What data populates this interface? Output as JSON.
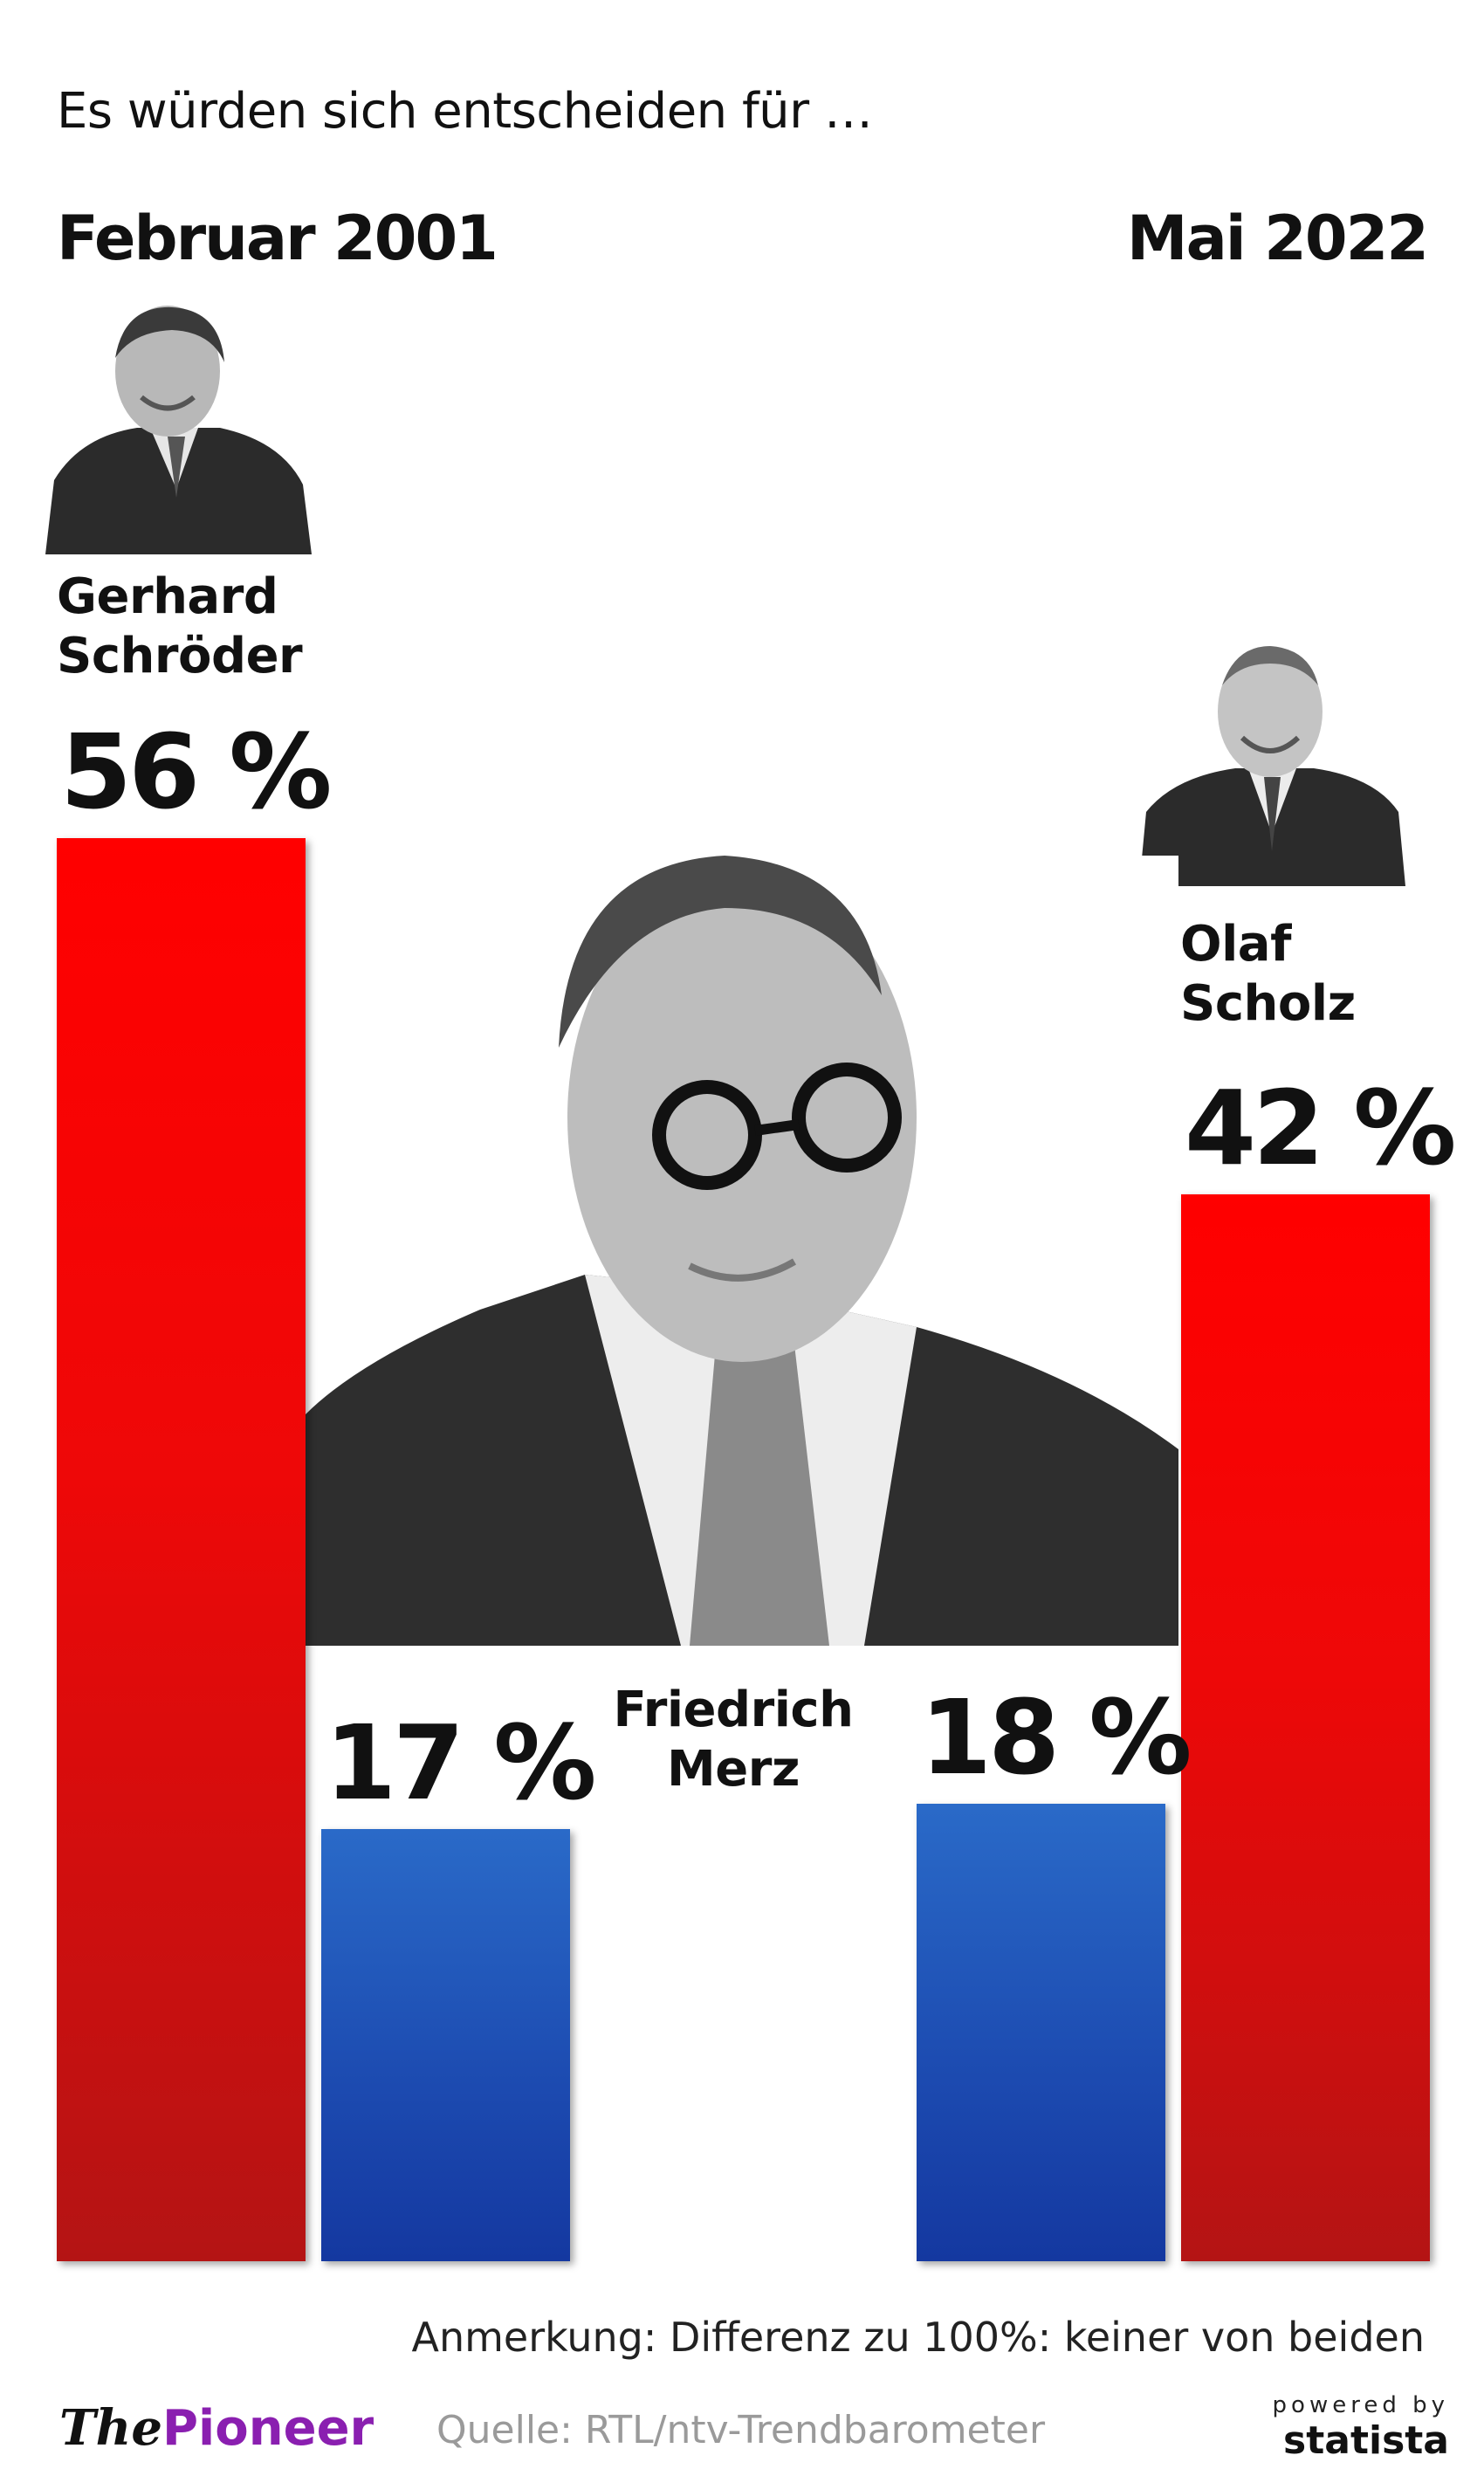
{
  "subtitle": "Es würden sich entscheiden für …",
  "periods": {
    "left": "Februar 2001",
    "right": "Mai 2022"
  },
  "chart_data": {
    "type": "bar",
    "categories": [
      "Februar 2001",
      "Mai 2022"
    ],
    "unit": "%",
    "series": [
      {
        "candidate": "Gerhard Schröder",
        "period": "Februar 2001",
        "value": 56,
        "label": "56 %",
        "color": "#ff0000"
      },
      {
        "candidate": "Friedrich Merz",
        "period": "Februar 2001",
        "value": 17,
        "label": "17 %",
        "color": "#1f55b8"
      },
      {
        "candidate": "Friedrich Merz",
        "period": "Mai 2022",
        "value": 18,
        "label": "18 %",
        "color": "#1f55b8"
      },
      {
        "candidate": "Olaf Scholz",
        "period": "Mai 2022",
        "value": 42,
        "label": "42 %",
        "color": "#ff0000"
      }
    ],
    "ylim": [
      0,
      100
    ]
  },
  "names": {
    "schroeder_line1": "Gerhard",
    "schroeder_line2": "Schröder",
    "scholz_line1": "Olaf",
    "scholz_line2": "Scholz",
    "merz_line1": "Friedrich",
    "merz_line2": "Merz"
  },
  "photos": {
    "schroeder": "portrait-schroeder-icon",
    "scholz": "portrait-scholz-icon",
    "merz": "portrait-merz-icon"
  },
  "footer": {
    "note": "Anmerkung: Differenz zu 100%: keiner von beiden",
    "source": "Quelle: RTL/ntv-Trendbarometer",
    "logo_left_the": "The",
    "logo_left_pioneer": "Pioneer",
    "powered_by": "powered by",
    "statista": "statista"
  }
}
